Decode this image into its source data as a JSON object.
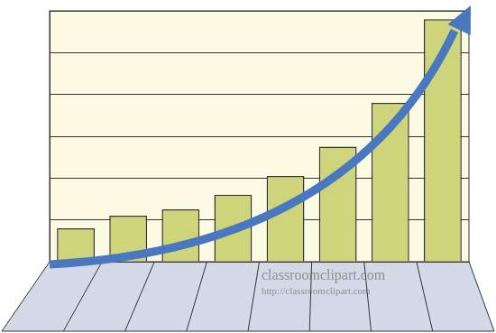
{
  "chart_data": {
    "type": "bar",
    "categories": [
      null,
      null,
      null,
      null,
      null,
      null,
      null,
      null
    ],
    "values": [
      0.8,
      1.1,
      1.25,
      1.6,
      2.05,
      2.75,
      3.8,
      5.8
    ],
    "color": "#cdd47a",
    "ylim": [
      0,
      6
    ],
    "yticks": [
      0,
      1,
      2,
      3,
      4,
      5,
      6
    ],
    "grid": true,
    "tick_labels": false,
    "annotations": [
      "classroomclipart.com",
      "http://classroomclipart.com"
    ]
  }
}
